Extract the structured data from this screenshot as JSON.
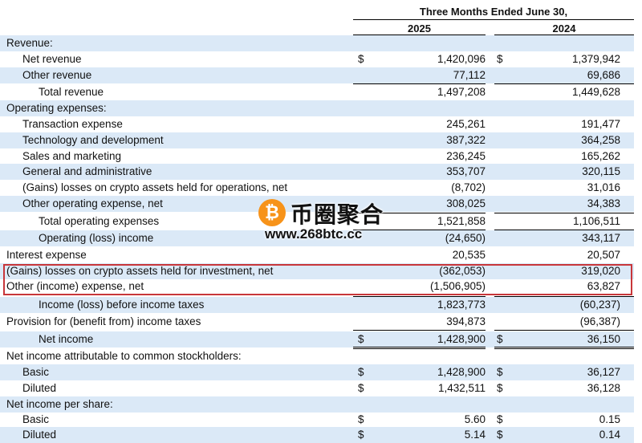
{
  "header": {
    "period": "Three Months Ended June 30,",
    "year_2025": "2025",
    "year_2024": "2024"
  },
  "rows": [
    {
      "label": "Revenue:",
      "v2025": "",
      "v2024": ""
    },
    {
      "label": "Net revenue",
      "cur": "$",
      "v2025": "1,420,096",
      "v2024": "1,379,942"
    },
    {
      "label": "Other revenue",
      "v2025": "77,112",
      "v2024": "69,686"
    },
    {
      "label": "Total revenue",
      "v2025": "1,497,208",
      "v2024": "1,449,628"
    },
    {
      "label": "Operating expenses:",
      "v2025": "",
      "v2024": ""
    },
    {
      "label": "Transaction expense",
      "v2025": "245,261",
      "v2024": "191,477"
    },
    {
      "label": "Technology and development",
      "v2025": "387,322",
      "v2024": "364,258"
    },
    {
      "label": "Sales and marketing",
      "v2025": "236,245",
      "v2024": "165,262"
    },
    {
      "label": "General and administrative",
      "v2025": "353,707",
      "v2024": "320,115"
    },
    {
      "label": "(Gains) losses on crypto assets held for operations, net",
      "v2025": "(8,702)",
      "v2024": "31,016"
    },
    {
      "label": "Other operating expense, net",
      "v2025": "308,025",
      "v2024": "34,383"
    },
    {
      "label": "Total operating expenses",
      "v2025": "1,521,858",
      "v2024": "1,106,511"
    },
    {
      "label": "Operating (loss) income",
      "v2025": "(24,650)",
      "v2024": "343,117"
    },
    {
      "label": "Interest expense",
      "v2025": "20,535",
      "v2024": "20,507"
    },
    {
      "label": "(Gains) losses on crypto assets held for investment, net",
      "v2025": "(362,053)",
      "v2024": "319,020"
    },
    {
      "label": "Other (income) expense, net",
      "v2025": "(1,506,905)",
      "v2024": "63,827"
    },
    {
      "label": "Income (loss) before income taxes",
      "v2025": "1,823,773",
      "v2024": "(60,237)"
    },
    {
      "label": "Provision for (benefit from) income taxes",
      "v2025": "394,873",
      "v2024": "(96,387)"
    },
    {
      "label": "Net income",
      "cur": "$",
      "v2025": "1,428,900",
      "v2024": "36,150"
    },
    {
      "label": "Net income attributable to common stockholders:",
      "v2025": "",
      "v2024": ""
    },
    {
      "label": "Basic",
      "cur": "$",
      "v2025": "1,428,900",
      "v2024": "36,127"
    },
    {
      "label": "Diluted",
      "cur": "$",
      "v2025": "1,432,511",
      "v2024": "36,128"
    },
    {
      "label": "Net income per share:",
      "v2025": "",
      "v2024": ""
    },
    {
      "label": "Basic",
      "cur": "$",
      "v2025": "5.60",
      "v2024": "0.15"
    },
    {
      "label": "Diluted",
      "cur": "$",
      "v2025": "5.14",
      "v2024": "0.14"
    }
  ],
  "watermark": {
    "logo_glyph": "₿",
    "name": "币圈聚合",
    "url": "www.268btc.cc",
    "coin_color": "#f7931a"
  },
  "colors": {
    "row_shade": "#dbe9f7",
    "highlight_border": "#c8363a"
  }
}
